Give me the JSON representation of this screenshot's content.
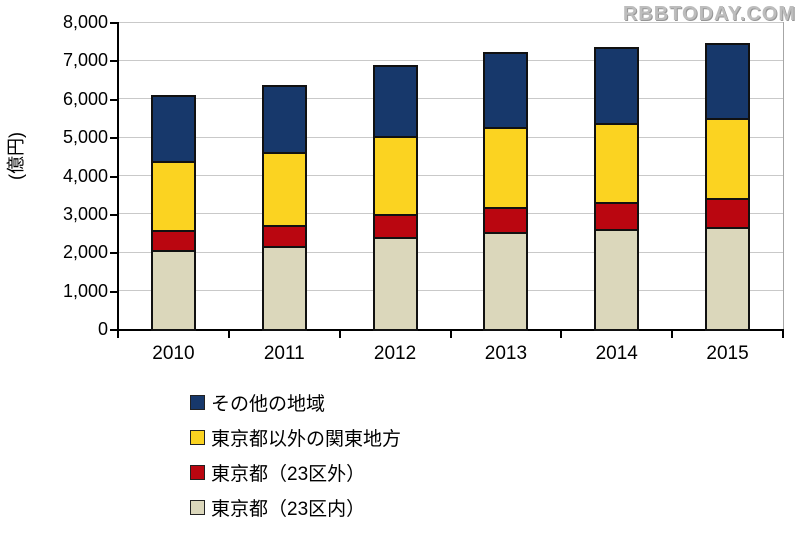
{
  "watermark": {
    "text": "RBBTODAY.COM"
  },
  "chart_data": {
    "type": "bar",
    "stacked": true,
    "title": "",
    "xlabel": "",
    "ylabel": "(億円)",
    "ylim": [
      0,
      8000
    ],
    "ytick_step": 1000,
    "ytick_labels": [
      "0",
      "1,000",
      "2,000",
      "3,000",
      "4,000",
      "5,000",
      "6,000",
      "7,000",
      "8,000"
    ],
    "categories": [
      "2010",
      "2011",
      "2012",
      "2013",
      "2014",
      "2015"
    ],
    "series": [
      {
        "name": "東京都（23区内）",
        "color": "#dbd7bb",
        "values": [
          2060,
          2170,
          2400,
          2540,
          2610,
          2650
        ]
      },
      {
        "name": "東京都（23区外）",
        "color": "#ba0610",
        "values": [
          520,
          540,
          600,
          630,
          700,
          760
        ]
      },
      {
        "name": "東京都以外の関東地方",
        "color": "#fbd321",
        "values": [
          1790,
          1890,
          2030,
          2100,
          2060,
          2090
        ]
      },
      {
        "name": "その他の地域",
        "color": "#17386b",
        "values": [
          1740,
          1770,
          1860,
          1950,
          1970,
          1960
        ]
      }
    ],
    "totals": [
      6110,
      6370,
      6890,
      7220,
      7340,
      7460
    ],
    "grid": true,
    "legend_position": "bottom-left",
    "legend_order_top_to_bottom": [
      "その他の地域",
      "東京都以外の関東地方",
      "東京都（23区外）",
      "東京都（23区内）"
    ]
  },
  "colors": {
    "grid": "#c9c9c9",
    "plot_right_border": "#a6a6a6",
    "axis": "#000000",
    "bar_border": "#111111",
    "background": "#ffffff",
    "watermark": "#bdbdbd"
  }
}
